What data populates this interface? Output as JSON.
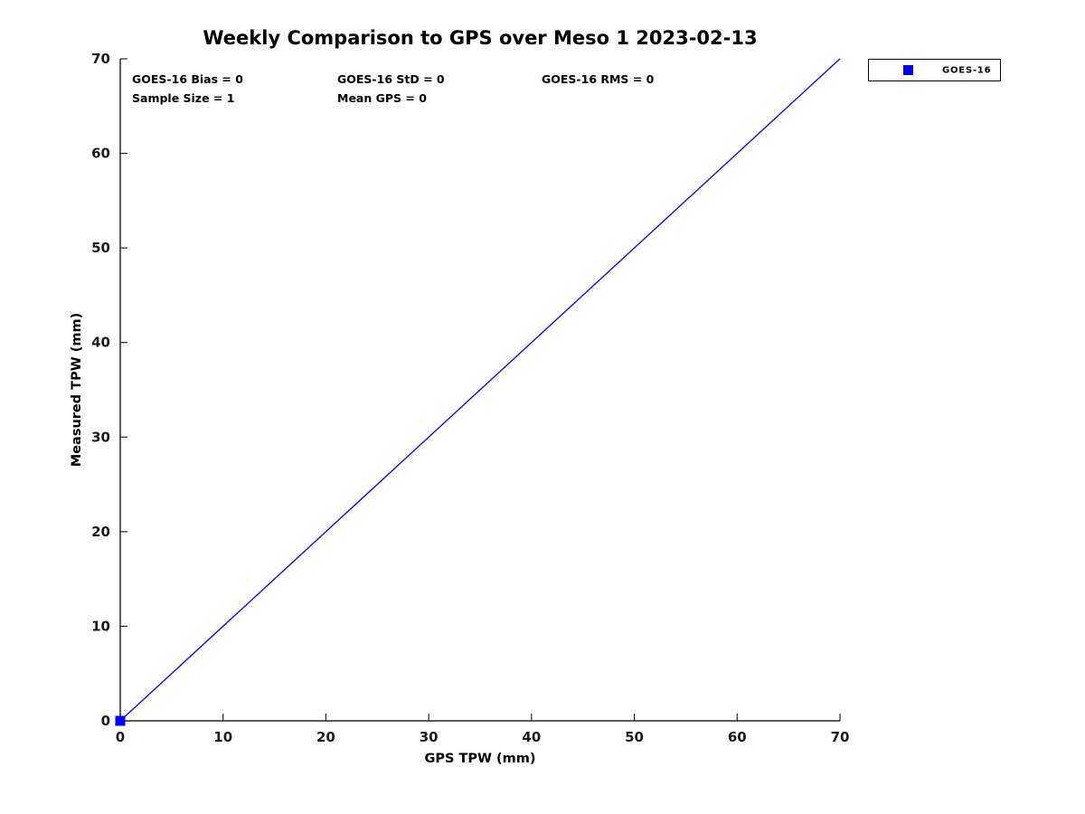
{
  "chart_data": {
    "type": "scatter",
    "title": "Weekly Comparison to GPS over Meso 1 2023-02-13",
    "xlabel": "GPS TPW (mm)",
    "ylabel": "Measured TPW (mm)",
    "xlim": [
      0,
      70
    ],
    "ylim": [
      0,
      70
    ],
    "xticks": [
      0,
      10,
      20,
      30,
      40,
      50,
      60,
      70
    ],
    "yticks": [
      0,
      10,
      20,
      30,
      40,
      50,
      60,
      70
    ],
    "grid": false,
    "box": false,
    "tick_direction": "in",
    "series": [
      {
        "name": "one-to-one-line",
        "type": "line",
        "color": "#0000FF",
        "points": [
          [
            0,
            0
          ],
          [
            70,
            70
          ]
        ]
      },
      {
        "name": "GOES-16",
        "type": "scatter",
        "marker": "square",
        "marker_size": 11,
        "color": "#0000FF",
        "points": [
          [
            0,
            0
          ]
        ]
      }
    ],
    "annotations": [
      {
        "id": "bias",
        "text": "GOES-16 Bias = 0"
      },
      {
        "id": "std",
        "text": "GOES-16 StD = 0"
      },
      {
        "id": "rms",
        "text": "GOES-16 RMS = 0"
      },
      {
        "id": "sample",
        "text": "Sample Size = 1"
      },
      {
        "id": "meangps",
        "text": "Mean GPS = 0"
      }
    ],
    "legend": {
      "position": "outside-top-right",
      "entries": [
        {
          "label": "GOES-16",
          "marker": "square",
          "color": "#0000FF"
        }
      ]
    }
  },
  "colors": {
    "axis": "#262626",
    "tick_label": "#1a1a1a",
    "text": "#000000",
    "series_blue": "#0000FF",
    "background": "#FFFFFF"
  }
}
